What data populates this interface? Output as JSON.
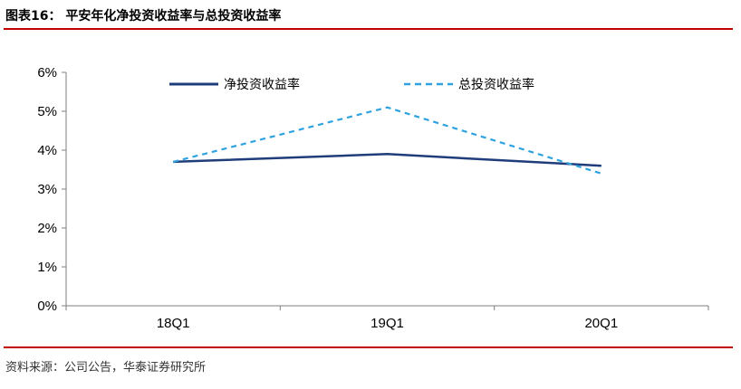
{
  "header": {
    "figure_title": "图表16：  平安年化净投资收益率与总投资收益率"
  },
  "footer": {
    "source": "资料来源：公司公告，华泰证券研究所"
  },
  "colors": {
    "rule": "#c00000",
    "series_net": "#1f3d7a",
    "series_total": "#2ea3e0"
  },
  "chart_data": {
    "type": "line",
    "title": "",
    "xlabel": "",
    "ylabel": "",
    "categories": [
      "18Q1",
      "19Q1",
      "20Q1"
    ],
    "ylim": [
      0,
      6
    ],
    "yticks": [
      "0%",
      "1%",
      "2%",
      "3%",
      "4%",
      "5%",
      "6%"
    ],
    "grid": false,
    "legend_position": "top",
    "series": [
      {
        "name": "净投资收益率",
        "values": [
          3.7,
          3.9,
          3.6
        ],
        "style": "solid",
        "color": "#1f3d7a"
      },
      {
        "name": "总投资收益率",
        "values": [
          3.7,
          5.1,
          3.4
        ],
        "style": "dashed",
        "color": "#2ea3e0"
      }
    ]
  }
}
